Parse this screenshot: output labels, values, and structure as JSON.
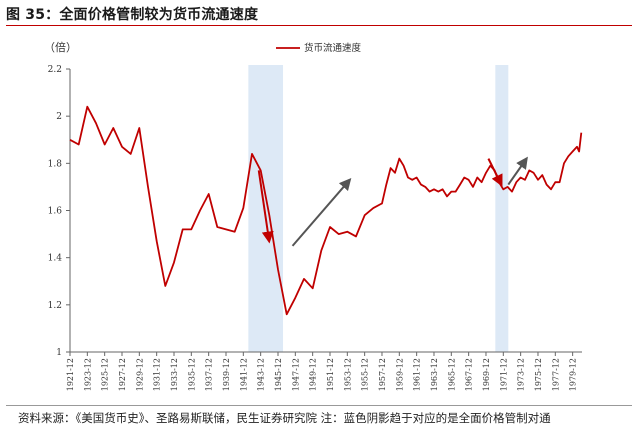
{
  "figure": {
    "title": "图 35：全面价格管制较为货币流通速度",
    "source_note": "资料来源：《美国货币史》、圣路易斯联储，民生证券研究院 注：蓝色阴影趋于对应的是全面价格管制对通"
  },
  "colors": {
    "series": "#c00000",
    "shade": "#dde9f6",
    "arrow_red": "#c00000",
    "arrow_gray": "#555555",
    "title_rule": "#c00000"
  },
  "chart_data": {
    "type": "line",
    "unit_label": "（倍）",
    "ylim": [
      1,
      2.2
    ],
    "y_ticks": [
      1,
      1.2,
      1.4,
      1.6,
      1.8,
      2,
      2.2
    ],
    "y_tick_labels": [
      "1",
      "1.2",
      "1.4",
      "1.6",
      "1.8",
      "2",
      "2.2"
    ],
    "x_tick_labels": [
      "1921-12",
      "1923-12",
      "1925-12",
      "1927-12",
      "1929-12",
      "1931-12",
      "1933-12",
      "1935-12",
      "1937-12",
      "1939-12",
      "1941-12",
      "1943-12",
      "1945-12",
      "1947-12",
      "1949-12",
      "1951-12",
      "1953-12",
      "1955-12",
      "1957-12",
      "1959-12",
      "1961-12",
      "1963-12",
      "1965-12",
      "1967-12",
      "1969-12",
      "1971-12",
      "1973-12",
      "1975-12",
      "1977-12",
      "1979-12"
    ],
    "xlim": [
      1921.92,
      1981.0
    ],
    "legend": {
      "position": "top-center"
    },
    "series": [
      {
        "name": "货币流通速度",
        "points": [
          [
            1921.92,
            1.9
          ],
          [
            1922.92,
            1.88
          ],
          [
            1923.92,
            2.04
          ],
          [
            1924.92,
            1.97
          ],
          [
            1925.92,
            1.88
          ],
          [
            1926.92,
            1.95
          ],
          [
            1927.92,
            1.87
          ],
          [
            1928.92,
            1.84
          ],
          [
            1929.92,
            1.95
          ],
          [
            1930.92,
            1.7
          ],
          [
            1931.92,
            1.47
          ],
          [
            1932.92,
            1.28
          ],
          [
            1933.92,
            1.38
          ],
          [
            1934.92,
            1.52
          ],
          [
            1935.92,
            1.52
          ],
          [
            1936.92,
            1.6
          ],
          [
            1937.92,
            1.67
          ],
          [
            1938.92,
            1.53
          ],
          [
            1939.92,
            1.52
          ],
          [
            1940.92,
            1.51
          ],
          [
            1941.92,
            1.61
          ],
          [
            1942.92,
            1.84
          ],
          [
            1943.92,
            1.77
          ],
          [
            1944.92,
            1.58
          ],
          [
            1945.92,
            1.35
          ],
          [
            1946.92,
            1.16
          ],
          [
            1947.92,
            1.23
          ],
          [
            1948.92,
            1.31
          ],
          [
            1949.92,
            1.27
          ],
          [
            1950.92,
            1.43
          ],
          [
            1951.92,
            1.53
          ],
          [
            1952.92,
            1.5
          ],
          [
            1953.92,
            1.51
          ],
          [
            1954.92,
            1.49
          ],
          [
            1955.92,
            1.58
          ],
          [
            1956.92,
            1.61
          ],
          [
            1957.92,
            1.63
          ],
          [
            1958.42,
            1.71
          ],
          [
            1958.92,
            1.78
          ],
          [
            1959.42,
            1.76
          ],
          [
            1959.92,
            1.82
          ],
          [
            1960.42,
            1.79
          ],
          [
            1960.92,
            1.74
          ],
          [
            1961.42,
            1.73
          ],
          [
            1961.92,
            1.74
          ],
          [
            1962.42,
            1.71
          ],
          [
            1962.92,
            1.7
          ],
          [
            1963.42,
            1.68
          ],
          [
            1963.92,
            1.69
          ],
          [
            1964.42,
            1.68
          ],
          [
            1964.92,
            1.69
          ],
          [
            1965.42,
            1.66
          ],
          [
            1965.92,
            1.68
          ],
          [
            1966.42,
            1.68
          ],
          [
            1966.92,
            1.71
          ],
          [
            1967.42,
            1.74
          ],
          [
            1967.92,
            1.73
          ],
          [
            1968.42,
            1.7
          ],
          [
            1968.92,
            1.74
          ],
          [
            1969.42,
            1.72
          ],
          [
            1969.92,
            1.76
          ],
          [
            1970.42,
            1.79
          ],
          [
            1970.92,
            1.77
          ],
          [
            1971.42,
            1.72
          ],
          [
            1971.92,
            1.69
          ],
          [
            1972.42,
            1.7
          ],
          [
            1972.92,
            1.68
          ],
          [
            1973.42,
            1.72
          ],
          [
            1973.92,
            1.74
          ],
          [
            1974.42,
            1.73
          ],
          [
            1974.92,
            1.77
          ],
          [
            1975.42,
            1.76
          ],
          [
            1975.92,
            1.73
          ],
          [
            1976.42,
            1.75
          ],
          [
            1976.92,
            1.71
          ],
          [
            1977.42,
            1.69
          ],
          [
            1977.92,
            1.72
          ],
          [
            1978.42,
            1.72
          ],
          [
            1978.92,
            1.8
          ],
          [
            1979.42,
            1.83
          ],
          [
            1979.92,
            1.85
          ],
          [
            1980.42,
            1.87
          ],
          [
            1980.67,
            1.85
          ],
          [
            1980.92,
            1.93
          ]
        ]
      }
    ],
    "shaded_periods": [
      [
        1942.5,
        1946.5
      ],
      [
        1971.0,
        1972.5
      ]
    ],
    "annotations": [
      {
        "kind": "arrow",
        "color": "red",
        "from": [
          1943.7,
          1.77
        ],
        "to": [
          1944.9,
          1.47
        ]
      },
      {
        "kind": "arrow",
        "color": "gray",
        "from": [
          1947.6,
          1.45
        ],
        "to": [
          1954.2,
          1.73
        ]
      },
      {
        "kind": "arrow",
        "color": "red",
        "from": [
          1970.2,
          1.82
        ],
        "to": [
          1971.7,
          1.71
        ]
      },
      {
        "kind": "arrow",
        "color": "gray",
        "from": [
          1972.5,
          1.71
        ],
        "to": [
          1974.6,
          1.82
        ]
      }
    ]
  }
}
